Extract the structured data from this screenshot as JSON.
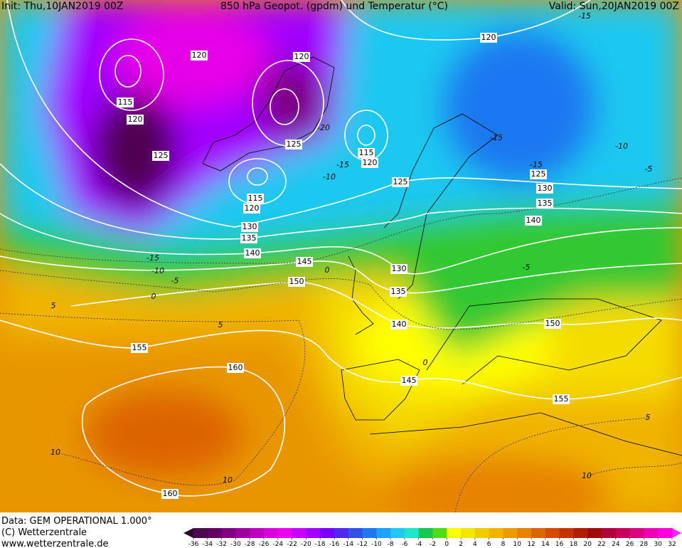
{
  "header": {
    "init": "Init: Thu,10JAN2019 00Z",
    "title": "850 hPa Geopot. (gpdm) und Temperatur (°C)",
    "valid": "Valid: Sun,20JAN2019 00Z"
  },
  "footer": {
    "data": "Data: GEM OPERATIONAL 1.000°",
    "copyright": "(C) Wetterzentrale",
    "url": "www.wetterzentrale.de"
  },
  "geopotential_labels": [
    120,
    120,
    120,
    115,
    120,
    125,
    125,
    115,
    120,
    125,
    125,
    130,
    135,
    140,
    115,
    120,
    130,
    135,
    140,
    145,
    150,
    130,
    135,
    140,
    145,
    150,
    155,
    155,
    160,
    160
  ],
  "temperature_labels": [
    -15,
    -10,
    -5,
    0,
    5,
    5,
    10,
    10,
    5,
    10,
    -15,
    -15,
    -15,
    -10,
    -15,
    -10,
    -5,
    0,
    0,
    -5,
    -20
  ],
  "colorbar": {
    "ticks": [
      -36,
      -34,
      -32,
      -30,
      -28,
      -26,
      -24,
      -22,
      -20,
      -18,
      -16,
      -14,
      -12,
      -10,
      -8,
      -6,
      -4,
      -2,
      0,
      2,
      4,
      6,
      8,
      10,
      12,
      14,
      16,
      18,
      20,
      22,
      24,
      26,
      28,
      30,
      32
    ],
    "colors": [
      "#4b0a4b",
      "#640064",
      "#820082",
      "#a000a0",
      "#c000c0",
      "#dc00dc",
      "#f000f0",
      "#c800ff",
      "#a000ff",
      "#7800ff",
      "#5028f0",
      "#3250e6",
      "#1e78f0",
      "#1ea0ff",
      "#1ec8f0",
      "#1ee6c8",
      "#14c850",
      "#50dc14",
      "#ffff00",
      "#f5e600",
      "#f0cd00",
      "#f0b400",
      "#eb9b00",
      "#e68200",
      "#dc6400",
      "#d24b00",
      "#c83200",
      "#b41e00",
      "#a00a0a",
      "#b4003c",
      "#c8005a",
      "#dc0082",
      "#f000b4",
      "#ff00dc"
    ],
    "low_color": "#2d0a2d",
    "high_color": "#ff28ff"
  }
}
